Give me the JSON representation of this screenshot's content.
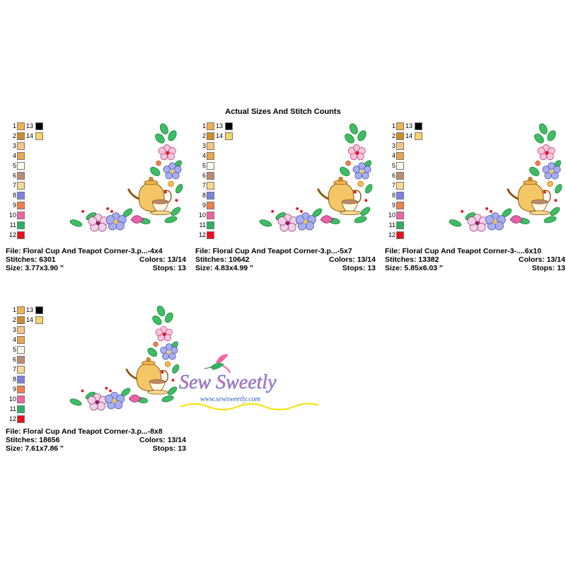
{
  "title": "Actual Sizes And Stitch Counts",
  "palette": [
    {
      "num": "1",
      "color": "#F1B253"
    },
    {
      "num": "2",
      "color": "#D28B2A"
    },
    {
      "num": "3",
      "color": "#F6C586"
    },
    {
      "num": "4",
      "color": "#E9A74B"
    },
    {
      "num": "5",
      "color": "#FFF8E6"
    },
    {
      "num": "6",
      "color": "#C08A6E"
    },
    {
      "num": "7",
      "color": "#F9D890"
    },
    {
      "num": "8",
      "color": "#7A83E0"
    },
    {
      "num": "9",
      "color": "#F07F4B"
    },
    {
      "num": "10",
      "color": "#F263A2"
    },
    {
      "num": "11",
      "color": "#2FB05E"
    },
    {
      "num": "12",
      "color": "#E8101A"
    },
    {
      "num": "13",
      "color": "#000000"
    },
    {
      "num": "14",
      "color": "#FBD36A"
    }
  ],
  "cards": [
    {
      "file_label": "File: Floral Cup And Teapot Corner-3.p...-4x4",
      "stitches_label": "Stitches: 6301",
      "colors_label": "Colors: 13/14",
      "size_label": "Size: 3.77x3.90 \"",
      "stops_label": "Stops: 13"
    },
    {
      "file_label": "File: Floral Cup And Teapot Corner-3.p...-5x7",
      "stitches_label": "Stitches: 10642",
      "colors_label": "Colors: 13/14",
      "size_label": "Size: 4.83x4.99 \"",
      "stops_label": "Stops: 13"
    },
    {
      "file_label": "File: Floral Cup And Teapot Corner-3-....6x10",
      "stitches_label": "Stitches: 13382",
      "colors_label": "Colors: 13/14",
      "size_label": "Size: 5.85x6.03 \"",
      "stops_label": "Stops: 13"
    },
    {
      "file_label": "File: Floral Cup And Teapot Corner-3.p...-8x8",
      "stitches_label": "Stitches: 18656",
      "colors_label": "Colors: 13/14",
      "size_label": "Size: 7.61x7.86 \"",
      "stops_label": "Stops: 13"
    }
  ],
  "watermark": {
    "brand": "Sew Sweetly",
    "url": "www.sewsweetly.com"
  }
}
